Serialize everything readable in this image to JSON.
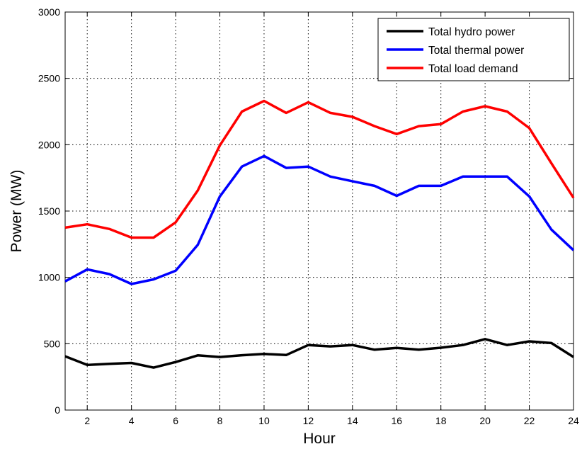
{
  "chart_data": {
    "type": "line",
    "title": "",
    "xlabel": "Hour",
    "ylabel": "Power (MW)",
    "xlim": [
      1,
      24
    ],
    "ylim": [
      0,
      3000
    ],
    "x_ticks": [
      2,
      4,
      6,
      8,
      10,
      12,
      14,
      16,
      18,
      20,
      22,
      24
    ],
    "y_ticks": [
      0,
      500,
      1000,
      1500,
      2000,
      2500,
      3000
    ],
    "grid": true,
    "legend_position": "top-right",
    "x": [
      1,
      2,
      3,
      4,
      5,
      6,
      7,
      8,
      9,
      10,
      11,
      12,
      13,
      14,
      15,
      16,
      17,
      18,
      19,
      20,
      21,
      22,
      23,
      24
    ],
    "series": [
      {
        "name": "Total hydro power",
        "color": "#000000",
        "values": [
          405,
          340,
          348,
          355,
          320,
          362,
          412,
          400,
          413,
          423,
          415,
          490,
          480,
          490,
          455,
          468,
          455,
          470,
          490,
          535,
          490,
          518,
          505,
          400
        ]
      },
      {
        "name": "Total thermal power",
        "color": "#0000ff",
        "values": [
          970,
          1060,
          1025,
          950,
          985,
          1050,
          1245,
          1610,
          1835,
          1915,
          1825,
          1835,
          1760,
          1725,
          1690,
          1615,
          1690,
          1690,
          1760,
          1760,
          1760,
          1610,
          1360,
          1205
        ]
      },
      {
        "name": "Total load demand",
        "color": "#ff0000",
        "values": [
          1375,
          1400,
          1365,
          1300,
          1300,
          1415,
          1655,
          1995,
          2250,
          2330,
          2240,
          2320,
          2240,
          2210,
          2140,
          2080,
          2140,
          2155,
          2250,
          2290,
          2250,
          2125,
          1860,
          1600
        ]
      }
    ]
  }
}
